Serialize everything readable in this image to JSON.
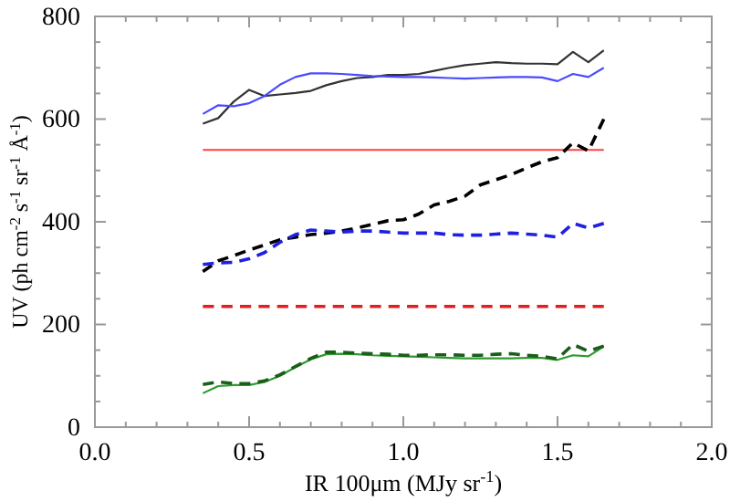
{
  "chart_data": {
    "type": "line",
    "xlabel": "IR 100μm (MJy sr$^{-1}$)",
    "ylabel": "UV (ph cm$^{-2}$ s$^{-1}$ sr$^{-1}$ Å$^{-1}$)",
    "x": [
      0.35,
      0.4,
      0.45,
      0.5,
      0.55,
      0.6,
      0.65,
      0.7,
      0.75,
      0.8,
      0.85,
      0.9,
      0.95,
      1.0,
      1.05,
      1.1,
      1.15,
      1.2,
      1.25,
      1.3,
      1.35,
      1.4,
      1.45,
      1.5,
      1.55,
      1.6,
      1.65
    ],
    "series": [
      {
        "color": "#333333",
        "line_style": "solid",
        "values": [
          591,
          602,
          634,
          657,
          645,
          648,
          651,
          655,
          666,
          674,
          680,
          682,
          686,
          686,
          688,
          694,
          700,
          705,
          708,
          711,
          709,
          708,
          708,
          707,
          731,
          711,
          734
        ]
      },
      {
        "color": "#4a4aff",
        "line_style": "solid",
        "values": [
          610,
          627,
          625,
          631,
          645,
          667,
          682,
          689,
          689,
          688,
          686,
          684,
          683,
          682,
          682,
          681,
          680,
          679,
          680,
          681,
          682,
          682,
          681,
          674,
          688,
          682,
          700
        ]
      },
      {
        "color": "#ff4040",
        "line_style": "solid",
        "values": [
          540,
          540,
          540,
          540,
          540,
          540,
          540,
          540,
          540,
          540,
          540,
          540,
          540,
          540,
          540,
          540,
          540,
          540,
          540,
          540,
          540,
          540,
          540,
          540,
          540,
          540,
          540
        ]
      },
      {
        "color": "#000000",
        "line_style": "dashed",
        "values": [
          303,
          324,
          334,
          345,
          355,
          365,
          370,
          375,
          378,
          382,
          388,
          395,
          402,
          404,
          415,
          433,
          440,
          450,
          472,
          482,
          492,
          505,
          517,
          525,
          554,
          538,
          600
        ]
      },
      {
        "color": "#2020e0",
        "line_style": "dashed",
        "values": [
          317,
          320,
          321,
          328,
          340,
          360,
          375,
          384,
          382,
          380,
          382,
          382,
          380,
          378,
          378,
          378,
          375,
          374,
          374,
          376,
          378,
          376,
          374,
          370,
          397,
          388,
          397
        ]
      },
      {
        "color": "#e02020",
        "line_style": "dashed",
        "values": [
          235,
          235,
          235,
          235,
          235,
          235,
          235,
          235,
          235,
          235,
          235,
          235,
          235,
          235,
          235,
          235,
          235,
          235,
          235,
          235,
          235,
          235,
          235,
          235,
          235,
          235,
          235
        ]
      },
      {
        "color": "#2e9a2e",
        "line_style": "solid",
        "values": [
          66,
          80,
          82,
          82,
          88,
          100,
          117,
          132,
          142,
          143,
          142,
          140,
          139,
          138,
          137,
          136,
          135,
          134,
          134,
          134,
          134,
          135,
          135,
          131,
          140,
          138,
          157
        ]
      },
      {
        "color": "#1a5e1a",
        "line_style": "dashed",
        "values": [
          83,
          88,
          85,
          85,
          90,
          102,
          118,
          134,
          146,
          146,
          144,
          143,
          142,
          140,
          140,
          141,
          141,
          140,
          140,
          142,
          143,
          140,
          138,
          133,
          161,
          148,
          158
        ]
      }
    ],
    "xlim": [
      0,
      2
    ],
    "ylim": [
      0,
      800
    ],
    "xticks": [
      {
        "value": 0,
        "label": "0.0"
      },
      {
        "value": 0.1,
        "label": null
      },
      {
        "value": 0.2,
        "label": null
      },
      {
        "value": 0.3,
        "label": null
      },
      {
        "value": 0.4,
        "label": null
      },
      {
        "value": 0.5,
        "label": "0.5"
      },
      {
        "value": 0.6,
        "label": null
      },
      {
        "value": 0.7,
        "label": null
      },
      {
        "value": 0.8,
        "label": null
      },
      {
        "value": 0.9,
        "label": null
      },
      {
        "value": 1,
        "label": "1.0"
      },
      {
        "value": 1.1,
        "label": null
      },
      {
        "value": 1.2,
        "label": null
      },
      {
        "value": 1.3,
        "label": null
      },
      {
        "value": 1.4,
        "label": null
      },
      {
        "value": 1.5,
        "label": "1.5"
      },
      {
        "value": 1.6,
        "label": null
      },
      {
        "value": 1.7,
        "label": null
      },
      {
        "value": 1.8,
        "label": null
      },
      {
        "value": 1.9,
        "label": null
      },
      {
        "value": 2,
        "label": "2.0"
      }
    ],
    "yticks": [
      0,
      {
        "value": 50,
        "label": null
      },
      {
        "value": 100,
        "label": null
      },
      {
        "value": 150,
        "label": null
      },
      200,
      {
        "value": 250,
        "label": null
      },
      {
        "value": 300,
        "label": null
      },
      {
        "value": 350,
        "label": null
      },
      400,
      {
        "value": 450,
        "label": null
      },
      {
        "value": 500,
        "label": null
      },
      {
        "value": 550,
        "label": null
      },
      600,
      {
        "value": 650,
        "label": null
      },
      {
        "value": 700,
        "label": null
      },
      {
        "value": 750,
        "label": null
      },
      800
    ],
    "grid": false,
    "marker": "none"
  }
}
